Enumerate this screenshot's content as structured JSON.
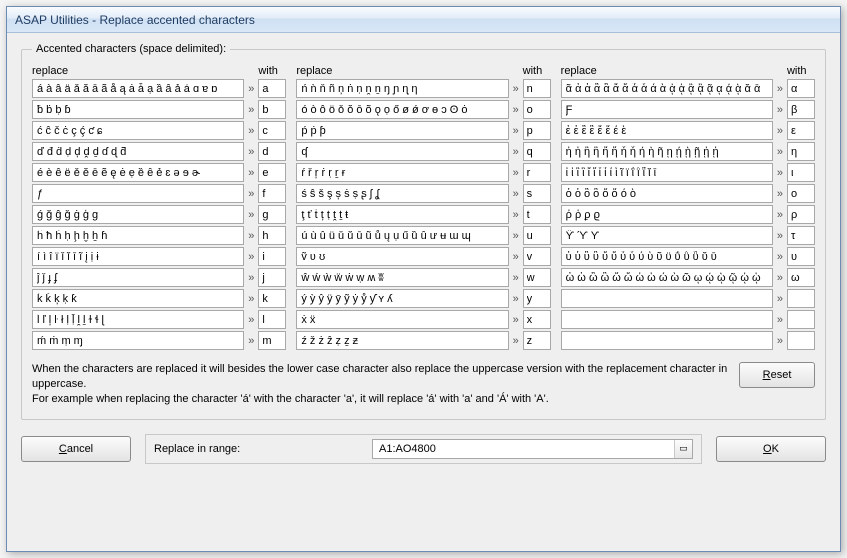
{
  "window": {
    "title": "ASAP Utilities - Replace accented characters"
  },
  "group": {
    "legend": "Accented characters (space delimited):"
  },
  "headers": {
    "replace": "replace",
    "with": "with",
    "arrow": "»"
  },
  "columns": [
    [
      {
        "pattern": "á à â ä ǎ ă ā ã å ą ȧ ǡ ạ ȁ ȃ ả ẚ ɑ ɐ ɒ",
        "with": "a"
      },
      {
        "pattern": "ƀ ḃ ḅ ɓ",
        "with": "b"
      },
      {
        "pattern": "ć ĉ č ċ ç ḉ ƈ ɕ",
        "with": "c"
      },
      {
        "pattern": "ď đ ḋ ḍ ḑ ḓ ḏ ɗ ɖ ƌ",
        "with": "d"
      },
      {
        "pattern": "é è ê ë ě ĕ ē ẽ ę ė ẹ ȅ ȇ ẻ ɛ ǝ ɘ ɚ",
        "with": "e"
      },
      {
        "pattern": "ƒ",
        "with": "f"
      },
      {
        "pattern": "ǵ ğ ĝ ǧ ġ ģ ɡ",
        "with": "g"
      },
      {
        "pattern": "ĥ ħ ḣ ḥ ḩ ḫ ẖ ɦ",
        "with": "h"
      },
      {
        "pattern": "í ì î ï ǐ ĭ ī ĩ į ị ɨ",
        "with": "i"
      },
      {
        "pattern": "ĵ ǰ ɟ ʄ",
        "with": "j"
      },
      {
        "pattern": "ḱ ǩ ķ ḳ ƙ",
        "with": "k"
      },
      {
        "pattern": "ĺ ľ ļ ŀ ł ḷ ḹ ḽ ḻ ɫ ɬ ɭ",
        "with": "l"
      },
      {
        "pattern": "ḿ ṁ ṃ ɱ",
        "with": "m"
      }
    ],
    [
      {
        "pattern": "ń ǹ ň ñ ņ ṅ ṇ ṋ ṉ ŋ ɲ ɳ ƞ",
        "with": "n"
      },
      {
        "pattern": "ó ò ô ö ǒ ŏ ō õ ǫ ọ ő ø ǿ ơ ɵ ɔ ʘ ȯ",
        "with": "o"
      },
      {
        "pattern": "ṕ ṗ ƥ",
        "with": "p"
      },
      {
        "pattern": "ʠ",
        "with": "q"
      },
      {
        "pattern": "ŕ ř ŗ ṙ ṛ ṟ ɍ",
        "with": "r"
      },
      {
        "pattern": "ś ŝ š ş ș ṡ ṣ ʂ ʃ ʆ",
        "with": "s"
      },
      {
        "pattern": "ţ ť ṫ ț ṭ ṱ ṯ ŧ",
        "with": "t"
      },
      {
        "pattern": "ú ù û ü ǔ ŭ ū ũ ů ų ụ ű ȕ ȗ ư ʉ ɯ ɰ",
        "with": "u"
      },
      {
        "pattern": "ṽ ʋ ʊ",
        "with": "v"
      },
      {
        "pattern": "ŵ ẃ ẁ ẅ ẇ ẉ ʍ ʬ",
        "with": "w"
      },
      {
        "pattern": "ý ỳ ŷ ÿ ȳ ỹ ẏ ẙ ƴ ʏ ʎ",
        "with": "y"
      },
      {
        "pattern": "ẋ ẍ",
        "with": "x"
      },
      {
        "pattern": "ź ž ż ẑ ẓ ẕ ƶ",
        "with": "z"
      }
    ],
    [
      {
        "pattern": "ᾶ ἀ ἁ ἂ ἃ ἄ ἅ ἆ ἇ ά ὰ ᾀ ᾁ ᾂ ᾃ ᾷ ᾳ ᾴ ᾲ ᾰ ᾱ",
        "with": "α"
      },
      {
        "pattern": "Ƒ",
        "with": "β"
      },
      {
        "pattern": "ἐ ἑ ἒ ἓ ἔ ἕ έ ὲ",
        "with": "ε"
      },
      {
        "pattern": "ἠ ἡ ἢ ἣ ἤ ἥ ἦ ἧ ή ὴ ῆ ῃ ῄ ῂ ῇ ᾐ ᾑ",
        "with": "η"
      },
      {
        "pattern": "ἰ ἱ ἲ ἳ ἴ ἵ ἶ ἷ ί ὶ ῖ ϊ ΐ ῒ ῗ ῐ ῑ",
        "with": "ι"
      },
      {
        "pattern": "ὀ ὁ ὂ ὃ ὄ ὅ ό ὸ",
        "with": "ο"
      },
      {
        "pattern": "ῤ ῥ ϼ ϱ",
        "with": "ρ"
      },
      {
        "pattern": "ϔ ϓ ϒ",
        "with": "τ"
      },
      {
        "pattern": "ὐ ὑ ὒ ὓ ὔ ὕ ὖ ὗ ύ ὺ ῦ ϋ ΰ ῢ ῧ ῠ ῡ",
        "with": "υ"
      },
      {
        "pattern": "ὠ ὡ ὢ ὣ ὤ ὥ ὦ ὧ ώ ὼ ῶ ῳ ῴ ῲ ῷ ᾠ ᾡ",
        "with": "ω"
      },
      {
        "pattern": "",
        "with": ""
      },
      {
        "pattern": "",
        "with": ""
      },
      {
        "pattern": "",
        "with": ""
      }
    ]
  ],
  "explain": {
    "line1": "When the characters are replaced it will besides the lower case character also replace the uppercase version with the replacement character in uppercase.",
    "line2": "For example when replacing the character 'á' with the character 'a', it will replace 'á' with 'a' and 'Á' with 'A'."
  },
  "buttons": {
    "reset": "Reset",
    "cancel": "Cancel",
    "ok": "OK"
  },
  "range": {
    "label": "Replace in range:",
    "value": "A1:AO4800"
  }
}
